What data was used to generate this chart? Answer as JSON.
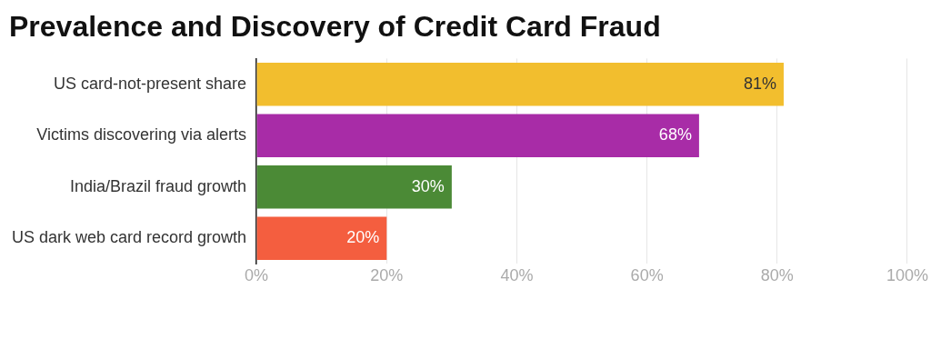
{
  "chart_data": {
    "type": "bar",
    "orientation": "horizontal",
    "title": "Prevalence and Discovery of Credit Card Fraud",
    "categories": [
      "US card-not-present share",
      "Victims discovering via alerts",
      "India/Brazil fraud growth",
      "US dark web card record growth"
    ],
    "values": [
      81,
      68,
      30,
      20
    ],
    "colors": [
      "#f2be2e",
      "#a82ca7",
      "#4b8a36",
      "#f45e3f"
    ],
    "value_labels": [
      "81%",
      "68%",
      "30%",
      "20%"
    ],
    "xlim": [
      0,
      100
    ],
    "xticks": [
      {
        "value": 0,
        "label": "0%"
      },
      {
        "value": 20,
        "label": "20%"
      },
      {
        "value": 40,
        "label": "40%"
      },
      {
        "value": 60,
        "label": "60%"
      },
      {
        "value": 80,
        "label": "80%"
      },
      {
        "value": 100,
        "label": "100%"
      }
    ],
    "grid": "x",
    "legend": false
  }
}
